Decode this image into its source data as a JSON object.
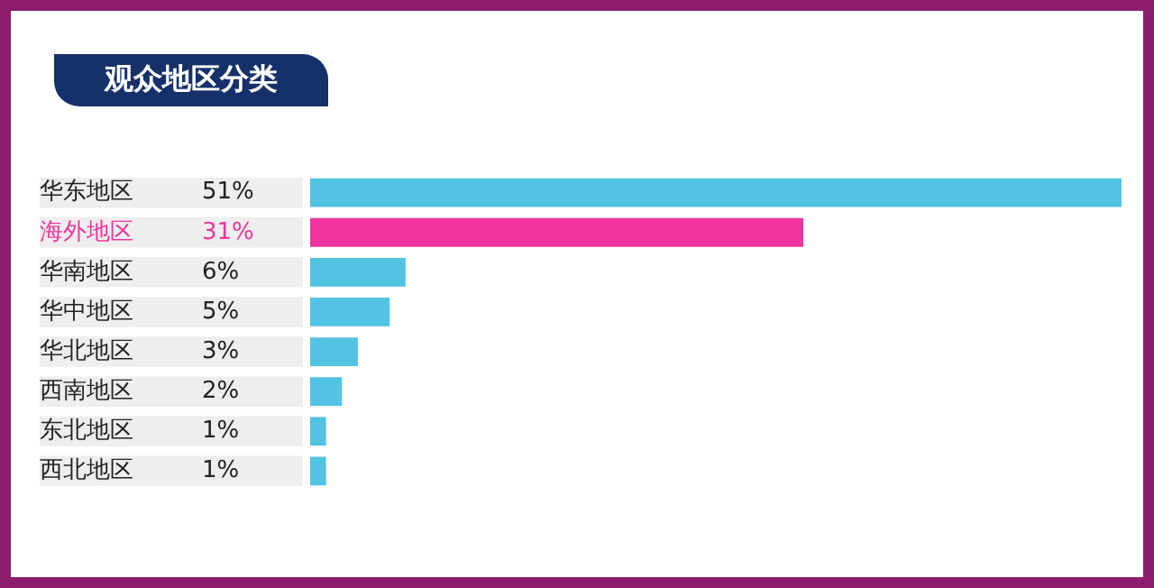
{
  "chart_data": {
    "type": "bar",
    "orientation": "horizontal",
    "title": "观众地区分类",
    "categories": [
      "华东地区",
      "海外地区",
      "华南地区",
      "华中地区",
      "华北地区",
      "西南地区",
      "东北地区",
      "西北地区"
    ],
    "values": [
      51,
      31,
      6,
      5,
      3,
      2,
      1,
      1
    ],
    "value_labels": [
      "51%",
      "31%",
      "6%",
      "5%",
      "3%",
      "2%",
      "1%",
      "1%"
    ],
    "color": "#52c3e3",
    "colors": [
      "#52c3e3",
      "#f0359e",
      "#52c3e3",
      "#52c3e3",
      "#52c3e3",
      "#52c3e3",
      "#52c3e3",
      "#52c3e3"
    ],
    "tick_labels": "y",
    "grid": false,
    "legend": false
  }
}
